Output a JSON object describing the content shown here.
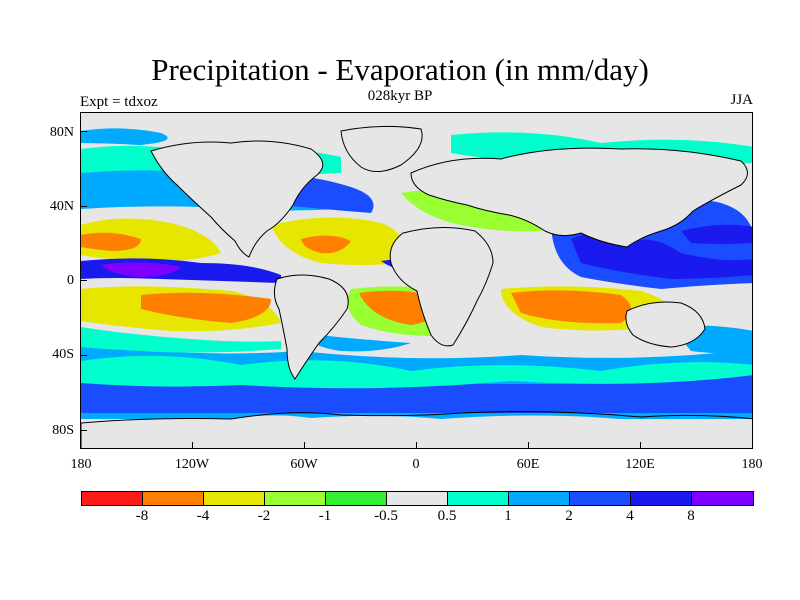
{
  "header": {
    "title": "Precipitation - Evaporation (in mm/day)",
    "subtitle": "028kyr BP",
    "experiment": "Expt = tdxoz",
    "season": "JJA"
  },
  "axes": {
    "y_labels": [
      "80N",
      "40N",
      "0",
      "40S",
      "80S"
    ],
    "x_labels": [
      "180",
      "120W",
      "60W",
      "0",
      "60E",
      "120E",
      "180"
    ]
  },
  "colorbar": {
    "colors": [
      "#ff1a1a",
      "#ff7f00",
      "#e6e600",
      "#99ff33",
      "#33ee33",
      "#e6e6e6",
      "#00ffcc",
      "#00aaff",
      "#1a4dff",
      "#1a1aee",
      "#8000ff"
    ],
    "labels": [
      "-8",
      "-4",
      "-2",
      "-1",
      "-0.5",
      "0.5",
      "1",
      "2",
      "4",
      "8"
    ]
  },
  "map_colors": {
    "ocean_neutral": "#e6e6e6",
    "coast": "#000000"
  }
}
